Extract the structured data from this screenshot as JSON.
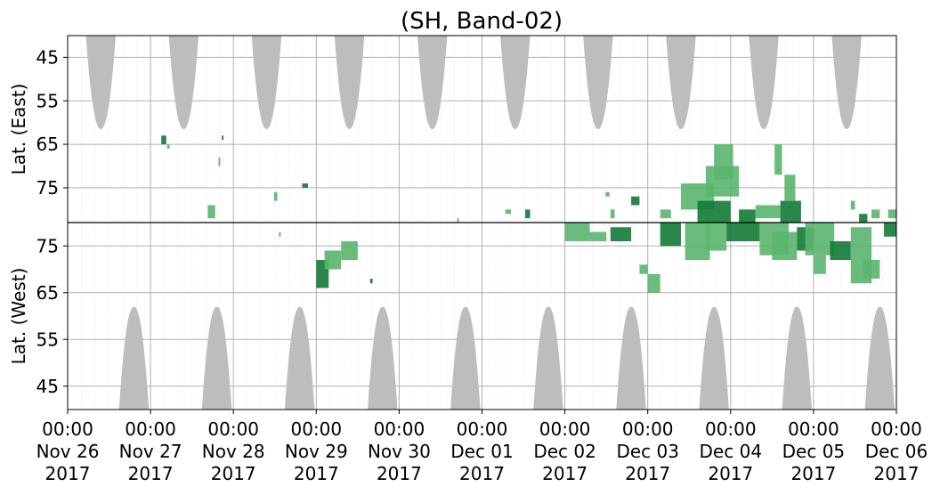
{
  "chart_data": {
    "type": "heatmap",
    "title": "(SH, Band-02)",
    "colors": {
      "grid": "#b0b0b0",
      "night": "#bdbdbd",
      "green_light": "#5ab56e",
      "green_dark": "#117a35",
      "divider": "#000000"
    },
    "x": {
      "ticks": [
        {
          "time": "00:00",
          "date": "Nov 26",
          "year": "2017"
        },
        {
          "time": "00:00",
          "date": "Nov 27",
          "year": "2017"
        },
        {
          "time": "00:00",
          "date": "Nov 28",
          "year": "2017"
        },
        {
          "time": "00:00",
          "date": "Nov 29",
          "year": "2017"
        },
        {
          "time": "00:00",
          "date": "Nov 30",
          "year": "2017"
        },
        {
          "time": "00:00",
          "date": "Dec 01",
          "year": "2017"
        },
        {
          "time": "00:00",
          "date": "Dec 02",
          "year": "2017"
        },
        {
          "time": "00:00",
          "date": "Dec 03",
          "year": "2017"
        },
        {
          "time": "00:00",
          "date": "Dec 04",
          "year": "2017"
        },
        {
          "time": "00:00",
          "date": "Dec 05",
          "year": "2017"
        },
        {
          "time": "00:00",
          "date": "Dec 06",
          "year": "2017"
        }
      ],
      "range_days": [
        0,
        10
      ]
    },
    "panels": [
      {
        "name": "east",
        "ylabel": "Lat. (East)",
        "ylim": [
          40,
          83
        ],
        "ytick_values": [
          45,
          55,
          65,
          75
        ],
        "ytick_labels": [
          "45",
          "55",
          "65",
          "75"
        ]
      },
      {
        "name": "west",
        "ylabel": "Lat. (West)",
        "ylim": [
          40,
          80
        ],
        "ytick_values": [
          45,
          55,
          65,
          75
        ],
        "ytick_labels": [
          "45",
          "55",
          "65",
          "75"
        ]
      }
    ],
    "night_regions": {
      "east": [
        {
          "center_day": 0.4,
          "half_width_day": 0.18,
          "min_lat": 61.5
        },
        {
          "center_day": 1.4,
          "half_width_day": 0.18,
          "min_lat": 61.5
        },
        {
          "center_day": 2.4,
          "half_width_day": 0.18,
          "min_lat": 61.5
        },
        {
          "center_day": 3.4,
          "half_width_day": 0.18,
          "min_lat": 61.5
        },
        {
          "center_day": 4.4,
          "half_width_day": 0.18,
          "min_lat": 61.5
        },
        {
          "center_day": 5.4,
          "half_width_day": 0.18,
          "min_lat": 61.5
        },
        {
          "center_day": 6.4,
          "half_width_day": 0.18,
          "min_lat": 61.5
        },
        {
          "center_day": 7.4,
          "half_width_day": 0.18,
          "min_lat": 61.5
        },
        {
          "center_day": 8.4,
          "half_width_day": 0.18,
          "min_lat": 61.5
        },
        {
          "center_day": 9.4,
          "half_width_day": 0.18,
          "min_lat": 61.5
        }
      ],
      "west": [
        {
          "center_day": 0.8,
          "half_width_day": 0.18,
          "max_lat": 62
        },
        {
          "center_day": 1.8,
          "half_width_day": 0.18,
          "max_lat": 62
        },
        {
          "center_day": 2.8,
          "half_width_day": 0.18,
          "max_lat": 62
        },
        {
          "center_day": 3.8,
          "half_width_day": 0.18,
          "max_lat": 62
        },
        {
          "center_day": 4.8,
          "half_width_day": 0.18,
          "max_lat": 62
        },
        {
          "center_day": 5.8,
          "half_width_day": 0.18,
          "max_lat": 62
        },
        {
          "center_day": 6.8,
          "half_width_day": 0.18,
          "max_lat": 62
        },
        {
          "center_day": 7.8,
          "half_width_day": 0.18,
          "max_lat": 62
        },
        {
          "center_day": 8.8,
          "half_width_day": 0.18,
          "max_lat": 62
        },
        {
          "center_day": 9.8,
          "half_width_day": 0.18,
          "max_lat": 62
        }
      ]
    },
    "events": {
      "east": [
        [
          1.13,
          1.19,
          63,
          65
        ],
        [
          1.2,
          1.23,
          65,
          66
        ],
        [
          1.69,
          1.78,
          79,
          82
        ],
        [
          1.86,
          1.88,
          63,
          64
        ],
        [
          1.82,
          1.84,
          68,
          70
        ],
        [
          2.49,
          2.53,
          76,
          78
        ],
        [
          2.83,
          2.9,
          74,
          75
        ],
        [
          4.7,
          4.72,
          82,
          83
        ],
        [
          5.28,
          5.35,
          80,
          81
        ],
        [
          5.52,
          5.58,
          80,
          82
        ],
        [
          6.49,
          6.54,
          76,
          77
        ],
        [
          6.55,
          6.6,
          80,
          82
        ],
        [
          6.8,
          6.9,
          77,
          79
        ],
        [
          7.15,
          7.28,
          80,
          82
        ],
        [
          7.4,
          7.8,
          74,
          80
        ],
        [
          7.6,
          8.0,
          78,
          83
        ],
        [
          7.7,
          8.1,
          70,
          77
        ],
        [
          7.8,
          8.03,
          65,
          73
        ],
        [
          8.1,
          8.3,
          80,
          83
        ],
        [
          8.3,
          8.6,
          79,
          82
        ],
        [
          8.53,
          8.62,
          65,
          72
        ],
        [
          8.6,
          8.85,
          78,
          83
        ],
        [
          8.65,
          8.78,
          72,
          78
        ],
        [
          9.45,
          9.5,
          78,
          80
        ],
        [
          9.55,
          9.65,
          81,
          83
        ],
        [
          9.7,
          9.8,
          80,
          82
        ],
        [
          9.9,
          10.0,
          80,
          82
        ]
      ],
      "west": [
        [
          2.55,
          2.57,
          77,
          78
        ],
        [
          3.0,
          3.15,
          66,
          72
        ],
        [
          3.1,
          3.3,
          70,
          74
        ],
        [
          3.3,
          3.5,
          72,
          76
        ],
        [
          3.65,
          3.68,
          67,
          68
        ],
        [
          6.0,
          6.3,
          76,
          80
        ],
        [
          6.3,
          6.5,
          76,
          78
        ],
        [
          6.55,
          6.8,
          76,
          79
        ],
        [
          6.9,
          7.0,
          69,
          71
        ],
        [
          7.0,
          7.15,
          65,
          69
        ],
        [
          7.15,
          7.4,
          75,
          80
        ],
        [
          7.45,
          7.75,
          72,
          80
        ],
        [
          7.7,
          7.95,
          74,
          80
        ],
        [
          7.95,
          8.35,
          76,
          80
        ],
        [
          8.35,
          8.7,
          73,
          80
        ],
        [
          8.5,
          8.8,
          72,
          78
        ],
        [
          8.8,
          9.0,
          74,
          79
        ],
        [
          8.9,
          9.25,
          73,
          80
        ],
        [
          9.0,
          9.15,
          69,
          73
        ],
        [
          9.2,
          9.45,
          72,
          76
        ],
        [
          9.45,
          9.7,
          67,
          79
        ],
        [
          9.6,
          9.8,
          68,
          72
        ],
        [
          9.85,
          10.0,
          77,
          80
        ]
      ]
    }
  }
}
